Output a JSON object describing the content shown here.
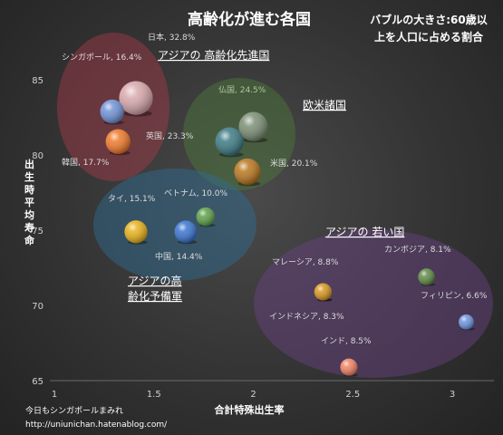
{
  "chart_data": {
    "type": "scatter",
    "title": "高齢化が進む各国",
    "note_lines": [
      "バブルの大きさ:60歳以",
      "上を人口に占める割合"
    ],
    "xlabel": "合計特殊出生率",
    "ylabel": "出生時平均寿命",
    "xlim": [
      1,
      3.2
    ],
    "ylim": [
      65,
      87
    ],
    "xticks": [
      1,
      1.5,
      2,
      2.5,
      3
    ],
    "yticks": [
      65,
      70,
      75,
      80,
      85
    ],
    "grid": false,
    "points": [
      {
        "name": "日本",
        "label": "日本, 32.8%",
        "x": 1.41,
        "y": 83.8,
        "size": 32.8,
        "color": "#d8a8ac",
        "label_color": "#dcdcdc"
      },
      {
        "name": "シンガポール",
        "label": "シンガポール, 16.4%",
        "x": 1.29,
        "y": 82.9,
        "size": 16.4,
        "color": "#6f92d6",
        "label_color": "#dcdcdc"
      },
      {
        "name": "韓国",
        "label": "韓国, 17.7%",
        "x": 1.32,
        "y": 80.9,
        "size": 17.7,
        "color": "#f07a2a",
        "label_color": "#dcdcdc"
      },
      {
        "name": "仏国",
        "label": "仏国, 24.5%",
        "x": 2.0,
        "y": 81.9,
        "size": 24.5,
        "color": "#7b8e74",
        "label_color": "#aac79a"
      },
      {
        "name": "英国",
        "label": "英国, 23.3%",
        "x": 1.88,
        "y": 80.9,
        "size": 23.3,
        "color": "#3c7a84",
        "label_color": "#dcdcdc"
      },
      {
        "name": "米国",
        "label": "米国, 20.1%",
        "x": 1.97,
        "y": 78.9,
        "size": 20.1,
        "color": "#b9761e",
        "label_color": "#dcdcdc"
      },
      {
        "name": "タイ",
        "label": "タイ, 15.1%",
        "x": 1.41,
        "y": 74.9,
        "size": 15.1,
        "color": "#e8b21a",
        "label_color": "#dcdcdc"
      },
      {
        "name": "ベトナム",
        "label": "ベトナム, 10.0%",
        "x": 1.76,
        "y": 75.9,
        "size": 10.0,
        "color": "#5ea04a",
        "label_color": "#dcdcdc"
      },
      {
        "name": "中国",
        "label": "中国, 14.4%",
        "x": 1.66,
        "y": 74.9,
        "size": 14.4,
        "color": "#3a74d0",
        "label_color": "#dcdcdc"
      },
      {
        "name": "カンボジア",
        "label": "カンボジア, 8.1%",
        "x": 2.87,
        "y": 71.9,
        "size": 8.1,
        "color": "#5e8a44",
        "label_color": "#dcdcdc"
      },
      {
        "name": "マレーシア",
        "label": "マレーシア, 8.8%",
        "x": 2.35,
        "y": 70.9,
        "size": 8.8,
        "color": "#d89820",
        "label_color": "#dcdcdc"
      },
      {
        "name": "フィリピン",
        "label": "フィリピン, 6.6%",
        "x": 3.07,
        "y": 68.9,
        "size": 6.6,
        "color": "#6e95e0",
        "label_color": "#dcdcdc"
      },
      {
        "name": "インドネシア",
        "label": "インドネシア, 8.3%",
        "x": 2.35,
        "y": 70.9,
        "size": 8.3,
        "color": "#d89820",
        "label_color": "#dcdcdc"
      },
      {
        "name": "インド",
        "label": "インド, 8.5%",
        "x": 2.48,
        "y": 65.9,
        "size": 8.5,
        "color": "#f08262",
        "label_color": "#dcdcdc"
      }
    ],
    "groups": [
      {
        "name": "アジアの 高齢化先進国",
        "label_lines": [
          "アジアの 高齢化先進国"
        ],
        "color": "#a83a4a"
      },
      {
        "name": "欧米諸国",
        "label_lines": [
          "欧米諸国"
        ],
        "color": "#4d7a3a"
      },
      {
        "name": "アジアの高齢化予備軍",
        "label_lines": [
          "アジアの高",
          "齢化予備軍"
        ],
        "color": "#2e6e96"
      },
      {
        "name": "アジアの 若い国",
        "label_lines": [
          "アジアの 若い国"
        ],
        "color": "#6a4286"
      }
    ]
  },
  "credit": {
    "line1": "今日もシンガポールまみれ",
    "line2": "http://uniunichan.hatenablog.com/"
  }
}
